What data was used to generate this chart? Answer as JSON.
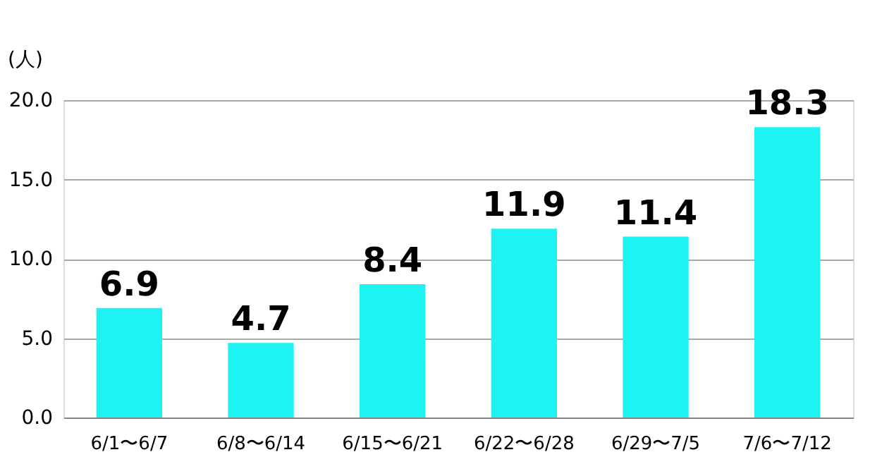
{
  "chart_data": {
    "type": "bar",
    "ylabel": "(人)",
    "categories": [
      "6/1〜6/7",
      "6/8〜6/14",
      "6/15〜6/21",
      "6/22〜6/28",
      "6/29〜7/5",
      "7/6〜7/12"
    ],
    "values": [
      6.9,
      4.7,
      8.4,
      11.9,
      11.4,
      18.3
    ],
    "color": "#1ff2f2",
    "ylim": [
      0,
      20
    ],
    "yticks": [
      {
        "value": 0,
        "label": "0.0"
      },
      {
        "value": 5,
        "label": "5.0"
      },
      {
        "value": 10,
        "label": "10.0"
      },
      {
        "value": 15,
        "label": "15.0"
      },
      {
        "value": 20,
        "label": "20.0"
      }
    ],
    "grid": "y",
    "data_labels": true
  }
}
